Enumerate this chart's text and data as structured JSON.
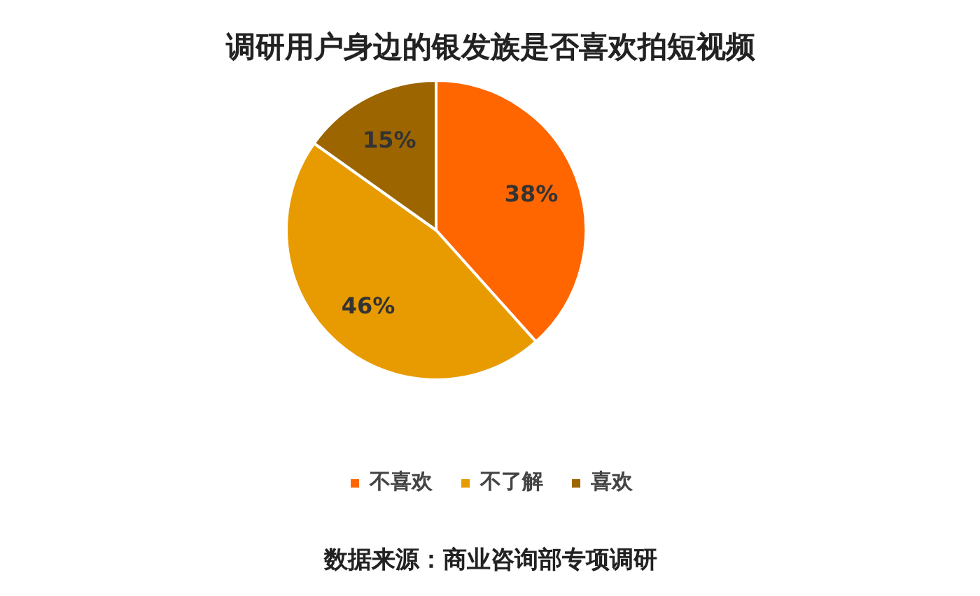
{
  "chart_data": {
    "type": "pie",
    "title": "调研用户身边的银发族是否喜欢拍短视频",
    "categories": [
      "不喜欢",
      "不了解",
      "喜欢"
    ],
    "values": [
      38,
      46,
      15
    ],
    "colors": [
      "#ff6600",
      "#e89b00",
      "#9c6500"
    ],
    "value_labels": [
      "38%",
      "46%",
      "15%"
    ],
    "legend": "bottom",
    "annotations": [
      "数据来源：商业咨询部专项调研"
    ]
  }
}
